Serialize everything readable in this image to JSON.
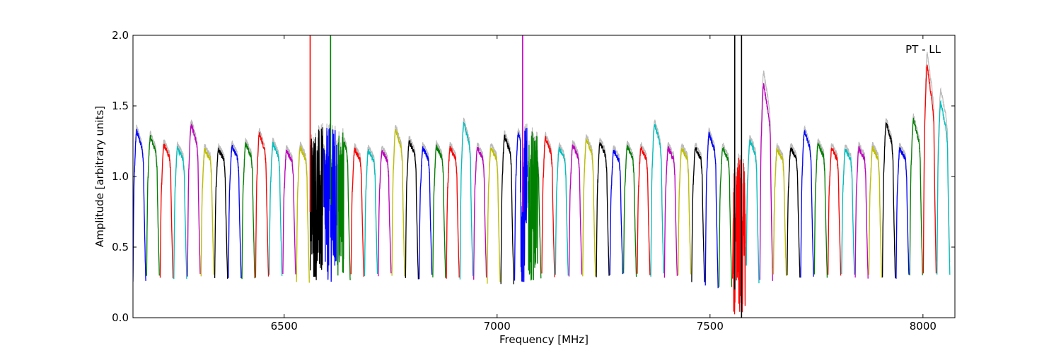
{
  "chart_data": {
    "type": "line",
    "title": "",
    "xlabel": "Frequency [MHz]",
    "ylabel": "Amplitude [arbitrary units]",
    "xlim": [
      6145,
      8075
    ],
    "ylim": [
      0,
      2.0
    ],
    "xticks": [
      6500,
      7000,
      7500,
      8000
    ],
    "xtick_labels": [
      "6500",
      "7000",
      "7500",
      "8000"
    ],
    "yticks": [
      0.0,
      0.5,
      1.0,
      1.5,
      2.0
    ],
    "ytick_labels": [
      "0.0",
      "0.5",
      "1.0",
      "1.5",
      "2.0"
    ],
    "grid": false,
    "annotation": "PT - LL",
    "colors": [
      "#0000ff",
      "#008000",
      "#ff0000",
      "#00bfbf",
      "#bf00bf",
      "#bfbf00",
      "#000000"
    ],
    "shadow_color": "#bbbbbb",
    "channels": {
      "start_mhz": 6145,
      "width_mhz": 32,
      "count": 60,
      "peaks": [
        1.32,
        1.28,
        1.22,
        1.2,
        1.37,
        1.19,
        1.19,
        1.21,
        1.23,
        1.3,
        1.23,
        1.18,
        1.2,
        1.26,
        1.2,
        1.3,
        1.19,
        1.18,
        1.18,
        1.33,
        1.25,
        1.2,
        1.21,
        1.2,
        1.37,
        1.2,
        1.2,
        1.28,
        1.3,
        1.2,
        1.27,
        1.2,
        1.22,
        1.26,
        1.24,
        1.18,
        1.21,
        1.2,
        1.37,
        1.2,
        1.2,
        1.2,
        1.3,
        1.2,
        1.19,
        1.25,
        1.65,
        1.19,
        1.2,
        1.32,
        1.23,
        1.2,
        1.19,
        1.2,
        1.2,
        1.38,
        1.2,
        1.4,
        1.78,
        1.52
      ],
      "floors": [
        0.25,
        0.29,
        0.29,
        0.29,
        0.3,
        0.3,
        0.29,
        0.28,
        0.28,
        0.3,
        0.3,
        0.3,
        0.26,
        0.25,
        0.25,
        0.26,
        0.3,
        0.3,
        0.3,
        0.29,
        0.27,
        0.29,
        0.29,
        0.29,
        0.28,
        0.28,
        0.25,
        0.25,
        0.25,
        0.29,
        0.3,
        0.3,
        0.3,
        0.3,
        0.3,
        0.3,
        0.3,
        0.3,
        0.3,
        0.29,
        0.29,
        0.25,
        0.22,
        0.22,
        0.29,
        0.26,
        0.26,
        0.3,
        0.3,
        0.3,
        0.3,
        0.3,
        0.3,
        0.29,
        0.29,
        0.29,
        0.29,
        0.3,
        0.3,
        0.3
      ]
    },
    "spikes": [
      {
        "x": 6561,
        "y_from": 0.75,
        "y_to": 2.0,
        "color": "#ff0000"
      },
      {
        "x": 6609,
        "y_from": 0.8,
        "y_to": 2.0,
        "color": "#008000"
      },
      {
        "x": 7060,
        "y_from": 0.75,
        "y_to": 2.0,
        "color": "#bf00bf"
      },
      {
        "x": 7558,
        "y_from": 0.2,
        "y_to": 2.0,
        "color": "#000000"
      },
      {
        "x": 7574,
        "y_from": 0.0,
        "y_to": 2.0,
        "color": "#000000"
      }
    ],
    "noisy_regions": [
      {
        "x_from": 6560,
        "x_to": 6640,
        "y_min": 0.25,
        "y_max": 1.35
      },
      {
        "x_from": 7055,
        "x_to": 7095,
        "y_min": 0.25,
        "y_max": 1.35
      },
      {
        "x_from": 7555,
        "x_to": 7585,
        "y_min": 0.0,
        "y_max": 1.15
      }
    ]
  }
}
